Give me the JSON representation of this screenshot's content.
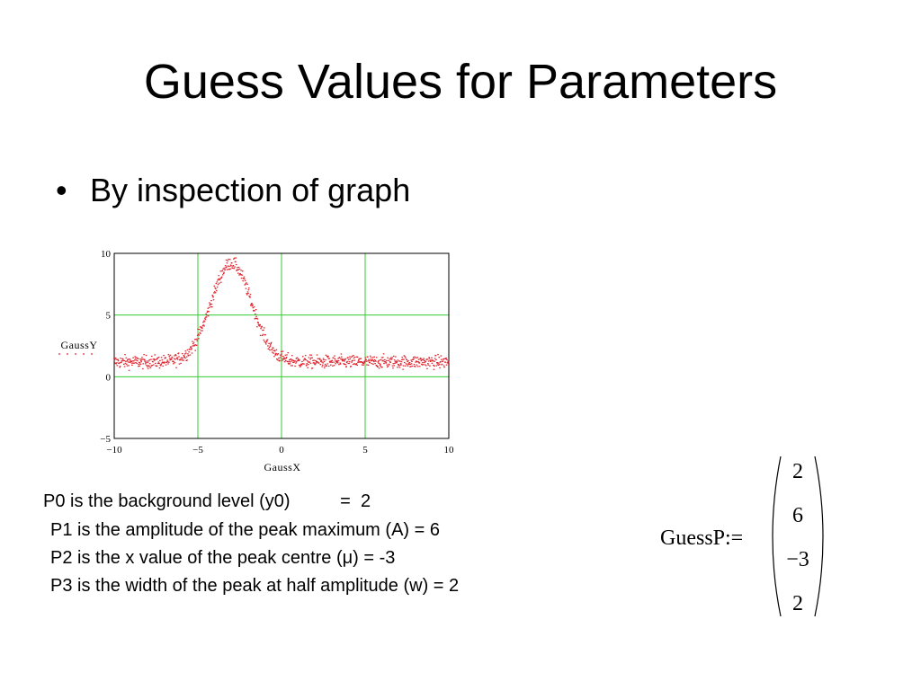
{
  "slide": {
    "title": "Guess Values for Parameters",
    "bullet_char": "•",
    "bullet": "By inspection of graph"
  },
  "params": {
    "p0": "P0 is the background level (y0)          =  2",
    "p1": "P1 is the amplitude of the peak maximum (A) = 6",
    "p2": "P2 is the x value of the peak centre (μ) = -3",
    "p3": "P3 is the width of the peak at half amplitude (w) = 2"
  },
  "guess": {
    "label": "GuessP:=",
    "values": [
      "2",
      "6",
      "−3",
      "2"
    ]
  },
  "chart_data": {
    "type": "scatter",
    "xlabel": "GaussX",
    "ylabel": "GaussY",
    "xlim": [
      -10,
      10
    ],
    "ylim": [
      -5,
      10
    ],
    "xticks": [
      "−10",
      "−5",
      "0",
      "5",
      "10"
    ],
    "yticks": [
      "−5",
      "0",
      "5",
      "10"
    ],
    "grid": true,
    "series": [
      {
        "model": "gaussian",
        "background": 1.2,
        "amplitude": 8,
        "center": -3,
        "width": 1.2,
        "noise": 0.5,
        "color": "#e0202a"
      }
    ]
  }
}
